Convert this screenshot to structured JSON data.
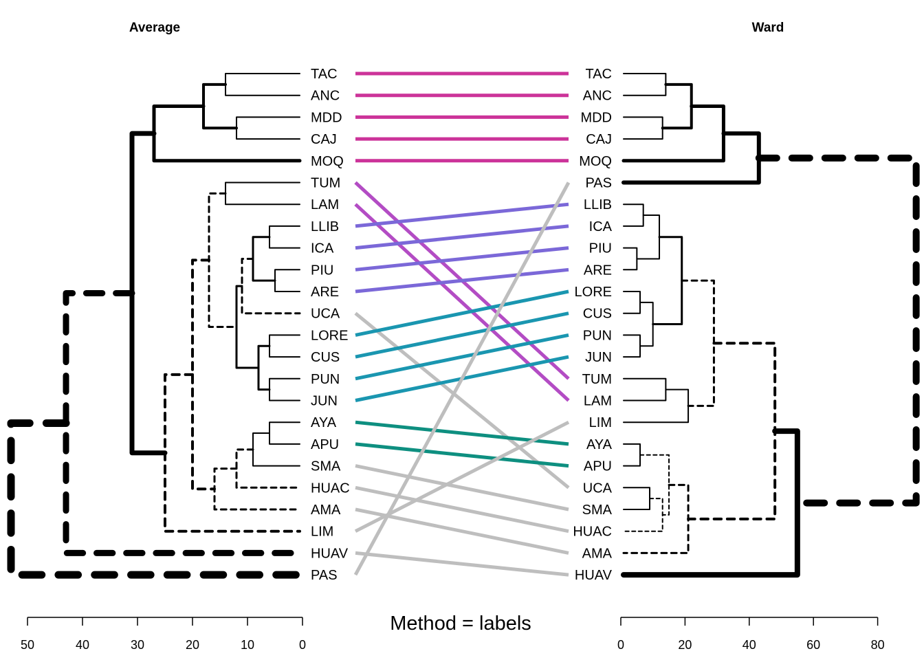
{
  "chart_data": {
    "type": "tanglegram",
    "subtitle": "Method = labels",
    "left": {
      "title": "Average",
      "xlim": [
        50,
        0
      ],
      "ticks": [
        50,
        40,
        30,
        20,
        10,
        0
      ],
      "leaves": [
        "TAC",
        "ANC",
        "MDD",
        "CAJ",
        "MOQ",
        "TUM",
        "LAM",
        "LLIB",
        "ICA",
        "PIU",
        "ARE",
        "UCA",
        "LORE",
        "CUS",
        "PUN",
        "JUN",
        "AYA",
        "APU",
        "SMA",
        "HUAC",
        "AMA",
        "LIM",
        "HUAV",
        "PAS"
      ],
      "merges": [
        {
          "children": [
            "TAC",
            "ANC"
          ],
          "height": 14,
          "style": "solid",
          "width": 2
        },
        {
          "children": [
            "MDD",
            "CAJ"
          ],
          "height": 12,
          "style": "solid",
          "width": 2
        },
        {
          "children": [
            0,
            1
          ],
          "height": 18,
          "style": "solid",
          "width": 4
        },
        {
          "children": [
            2,
            "MOQ"
          ],
          "height": 27,
          "style": "solid",
          "width": 5
        },
        {
          "children": [
            "TUM",
            "LAM"
          ],
          "height": 14,
          "style": "solid",
          "width": 2
        },
        {
          "children": [
            "LLIB",
            "ICA"
          ],
          "height": 6,
          "style": "solid",
          "width": 2
        },
        {
          "children": [
            "PIU",
            "ARE"
          ],
          "height": 5,
          "style": "solid",
          "width": 2
        },
        {
          "children": [
            5,
            6
          ],
          "height": 9,
          "style": "solid",
          "width": 3
        },
        {
          "children": [
            7,
            "UCA"
          ],
          "height": 11,
          "style": "dashed",
          "width": 3
        },
        {
          "children": [
            "LORE",
            "CUS"
          ],
          "height": 6,
          "style": "solid",
          "width": 2
        },
        {
          "children": [
            "PUN",
            "JUN"
          ],
          "height": 6,
          "style": "solid",
          "width": 2
        },
        {
          "children": [
            9,
            10
          ],
          "height": 8,
          "style": "solid",
          "width": 3
        },
        {
          "children": [
            8,
            11
          ],
          "height": 12,
          "style": "solid",
          "width": 3
        },
        {
          "children": [
            4,
            12
          ],
          "height": 17,
          "style": "dashed",
          "width": 3
        },
        {
          "children": [
            "AYA",
            "APU"
          ],
          "height": 6,
          "style": "solid",
          "width": 2
        },
        {
          "children": [
            14,
            "SMA"
          ],
          "height": 9,
          "style": "solid",
          "width": 2
        },
        {
          "children": [
            15,
            "HUAC"
          ],
          "height": 12,
          "style": "dashed",
          "width": 3
        },
        {
          "children": [
            16,
            "AMA"
          ],
          "height": 16,
          "style": "dashed",
          "width": 3
        },
        {
          "children": [
            13,
            17
          ],
          "height": 20,
          "style": "dashed",
          "width": 4
        },
        {
          "children": [
            18,
            "LIM"
          ],
          "height": 25,
          "style": "dashed",
          "width": 4
        },
        {
          "children": [
            3,
            19
          ],
          "height": 31,
          "style": "solid",
          "width": 7
        },
        {
          "children": [
            20,
            "HUAV"
          ],
          "height": 43,
          "style": "dashed",
          "width": 9
        },
        {
          "children": [
            21,
            "PAS"
          ],
          "height": 53,
          "style": "dashed",
          "width": 11
        }
      ]
    },
    "right": {
      "title": "Ward",
      "xlim": [
        0,
        80
      ],
      "ticks": [
        0,
        20,
        40,
        60,
        80
      ],
      "leaves": [
        "TAC",
        "ANC",
        "MDD",
        "CAJ",
        "MOQ",
        "PAS",
        "LLIB",
        "ICA",
        "PIU",
        "ARE",
        "LORE",
        "CUS",
        "PUN",
        "JUN",
        "TUM",
        "LAM",
        "LIM",
        "AYA",
        "APU",
        "UCA",
        "SMA",
        "HUAC",
        "AMA",
        "HUAV"
      ],
      "merges": [
        {
          "children": [
            "TAC",
            "ANC"
          ],
          "height": 14,
          "style": "solid",
          "width": 2
        },
        {
          "children": [
            "MDD",
            "CAJ"
          ],
          "height": 13,
          "style": "solid",
          "width": 2
        },
        {
          "children": [
            0,
            1
          ],
          "height": 22,
          "style": "solid",
          "width": 4
        },
        {
          "children": [
            2,
            "MOQ"
          ],
          "height": 32,
          "style": "solid",
          "width": 5
        },
        {
          "children": [
            3,
            "PAS"
          ],
          "height": 43,
          "style": "solid",
          "width": 6
        },
        {
          "children": [
            "LLIB",
            "ICA"
          ],
          "height": 7,
          "style": "solid",
          "width": 2
        },
        {
          "children": [
            "PIU",
            "ARE"
          ],
          "height": 5,
          "style": "solid",
          "width": 2
        },
        {
          "children": [
            5,
            6
          ],
          "height": 12,
          "style": "solid",
          "width": 2
        },
        {
          "children": [
            "LORE",
            "CUS"
          ],
          "height": 6,
          "style": "solid",
          "width": 2
        },
        {
          "children": [
            "PUN",
            "JUN"
          ],
          "height": 6,
          "style": "solid",
          "width": 2
        },
        {
          "children": [
            8,
            9
          ],
          "height": 10,
          "style": "solid",
          "width": 2
        },
        {
          "children": [
            7,
            10
          ],
          "height": 19,
          "style": "solid",
          "width": 3
        },
        {
          "children": [
            "TUM",
            "LAM"
          ],
          "height": 14,
          "style": "solid",
          "width": 2
        },
        {
          "children": [
            12,
            "LIM"
          ],
          "height": 21,
          "style": "solid",
          "width": 2
        },
        {
          "children": [
            11,
            13
          ],
          "height": 29,
          "style": "dashed",
          "width": 3
        },
        {
          "children": [
            "AYA",
            "APU"
          ],
          "height": 6,
          "style": "solid",
          "width": 2
        },
        {
          "children": [
            "UCA",
            "SMA"
          ],
          "height": 9,
          "style": "solid",
          "width": 2
        },
        {
          "children": [
            16,
            "HUAC"
          ],
          "height": 13,
          "style": "dashed",
          "width": 2
        },
        {
          "children": [
            15,
            17
          ],
          "height": 15,
          "style": "dashed",
          "width": 2
        },
        {
          "children": [
            18,
            "AMA"
          ],
          "height": 21,
          "style": "dashed",
          "width": 3
        },
        {
          "children": [
            14,
            19
          ],
          "height": 48,
          "style": "dashed",
          "width": 4
        },
        {
          "children": [
            20,
            "HUAV"
          ],
          "height": 55,
          "style": "solid",
          "width": 8
        },
        {
          "children": [
            4,
            21
          ],
          "height": 92,
          "style": "dashed",
          "width": 10
        }
      ]
    },
    "connections": [
      {
        "leaf": "TAC",
        "color": "#CC3399"
      },
      {
        "leaf": "ANC",
        "color": "#CC3399"
      },
      {
        "leaf": "MDD",
        "color": "#CC3399"
      },
      {
        "leaf": "CAJ",
        "color": "#CC3399"
      },
      {
        "leaf": "MOQ",
        "color": "#CC3399"
      },
      {
        "leaf": "TUM",
        "color": "#B34CC4"
      },
      {
        "leaf": "LAM",
        "color": "#B34CC4"
      },
      {
        "leaf": "LLIB",
        "color": "#7B68D8"
      },
      {
        "leaf": "ICA",
        "color": "#7B68D8"
      },
      {
        "leaf": "PIU",
        "color": "#7B68D8"
      },
      {
        "leaf": "ARE",
        "color": "#7B68D8"
      },
      {
        "leaf": "UCA",
        "color": "#BEBEBE"
      },
      {
        "leaf": "LORE",
        "color": "#1A96B0"
      },
      {
        "leaf": "CUS",
        "color": "#1A96B0"
      },
      {
        "leaf": "PUN",
        "color": "#1A96B0"
      },
      {
        "leaf": "JUN",
        "color": "#1A96B0"
      },
      {
        "leaf": "AYA",
        "color": "#0E8F80"
      },
      {
        "leaf": "APU",
        "color": "#0E8F80"
      },
      {
        "leaf": "SMA",
        "color": "#BEBEBE"
      },
      {
        "leaf": "HUAC",
        "color": "#BEBEBE"
      },
      {
        "leaf": "AMA",
        "color": "#BEBEBE"
      },
      {
        "leaf": "LIM",
        "color": "#BEBEBE"
      },
      {
        "leaf": "HUAV",
        "color": "#BEBEBE"
      },
      {
        "leaf": "PAS",
        "color": "#BEBEBE"
      }
    ]
  }
}
